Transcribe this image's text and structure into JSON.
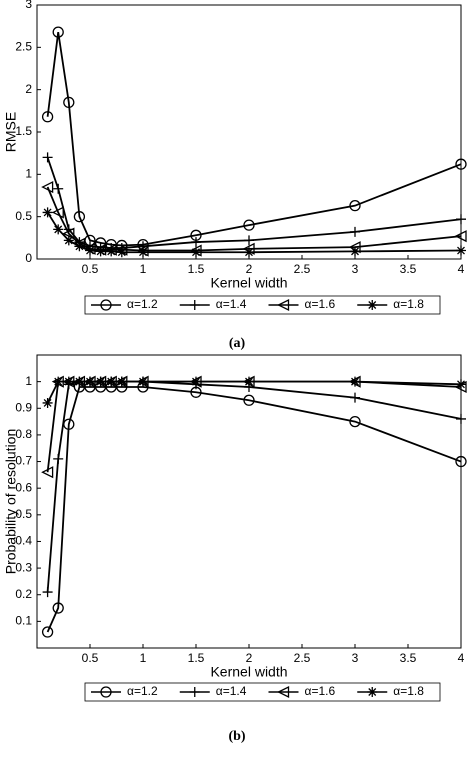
{
  "chart_data": [
    {
      "type": "line",
      "caption": "(a)",
      "xlabel": "Kernel width",
      "ylabel": "RMSE",
      "x": [
        0.1,
        0.2,
        0.3,
        0.4,
        0.5,
        0.6,
        0.7,
        0.8,
        1,
        1.5,
        2,
        3,
        4
      ],
      "xlim": [
        0,
        4
      ],
      "xticks": [
        0.5,
        1,
        1.5,
        2,
        2.5,
        3,
        3.5,
        4
      ],
      "ylim": [
        0,
        3
      ],
      "yticks": [
        0,
        0.5,
        1,
        1.5,
        2,
        2.5,
        3
      ],
      "series": [
        {
          "name": "α=1.2",
          "color": "#000000",
          "marker": "circle",
          "values": [
            1.68,
            2.68,
            1.85,
            0.5,
            0.22,
            0.19,
            0.17,
            0.16,
            0.17,
            0.28,
            0.4,
            0.63,
            1.12
          ]
        },
        {
          "name": "α=1.4",
          "color": "#000000",
          "marker": "plus",
          "values": [
            1.2,
            0.83,
            0.35,
            0.2,
            0.15,
            0.14,
            0.13,
            0.13,
            0.15,
            0.2,
            0.22,
            0.32,
            0.47
          ]
        },
        {
          "name": "α=1.6",
          "color": "#000000",
          "marker": "triangle-left",
          "values": [
            0.85,
            0.55,
            0.3,
            0.18,
            0.12,
            0.11,
            0.11,
            0.11,
            0.1,
            0.1,
            0.12,
            0.14,
            0.27
          ]
        },
        {
          "name": "α=1.8",
          "color": "#000000",
          "marker": "asterisk",
          "values": [
            0.55,
            0.35,
            0.22,
            0.15,
            0.1,
            0.09,
            0.09,
            0.08,
            0.08,
            0.08,
            0.08,
            0.09,
            0.1
          ]
        }
      ]
    },
    {
      "type": "line",
      "caption": "(b)",
      "xlabel": "Kernel width",
      "ylabel": "Probability of resolution",
      "x": [
        0.1,
        0.2,
        0.3,
        0.4,
        0.5,
        0.6,
        0.7,
        0.8,
        1,
        1.5,
        2,
        3,
        4
      ],
      "xlim": [
        0,
        4
      ],
      "xticks": [
        0.5,
        1,
        1.5,
        2,
        2.5,
        3,
        3.5,
        4
      ],
      "ylim": [
        0,
        1.1
      ],
      "yticks": [
        0.1,
        0.2,
        0.3,
        0.4,
        0.5,
        0.6,
        0.7,
        0.8,
        0.9,
        1
      ],
      "series": [
        {
          "name": "α=1.2",
          "color": "#000000",
          "marker": "circle",
          "values": [
            0.06,
            0.15,
            0.84,
            0.98,
            0.98,
            0.98,
            0.98,
            0.98,
            0.98,
            0.96,
            0.93,
            0.85,
            0.7
          ]
        },
        {
          "name": "α=1.4",
          "color": "#000000",
          "marker": "plus",
          "values": [
            0.21,
            0.71,
            0.99,
            1,
            1,
            1,
            1,
            1,
            1,
            0.99,
            0.98,
            0.94,
            0.86
          ]
        },
        {
          "name": "α=1.6",
          "color": "#000000",
          "marker": "triangle-left",
          "values": [
            0.66,
            1,
            1,
            1,
            1,
            1,
            1,
            1,
            1,
            1,
            1,
            1,
            0.98
          ]
        },
        {
          "name": "α=1.8",
          "color": "#000000",
          "marker": "asterisk",
          "values": [
            0.92,
            1,
            1,
            1,
            1,
            1,
            1,
            1,
            1,
            1,
            1,
            1,
            0.99
          ]
        }
      ]
    }
  ]
}
